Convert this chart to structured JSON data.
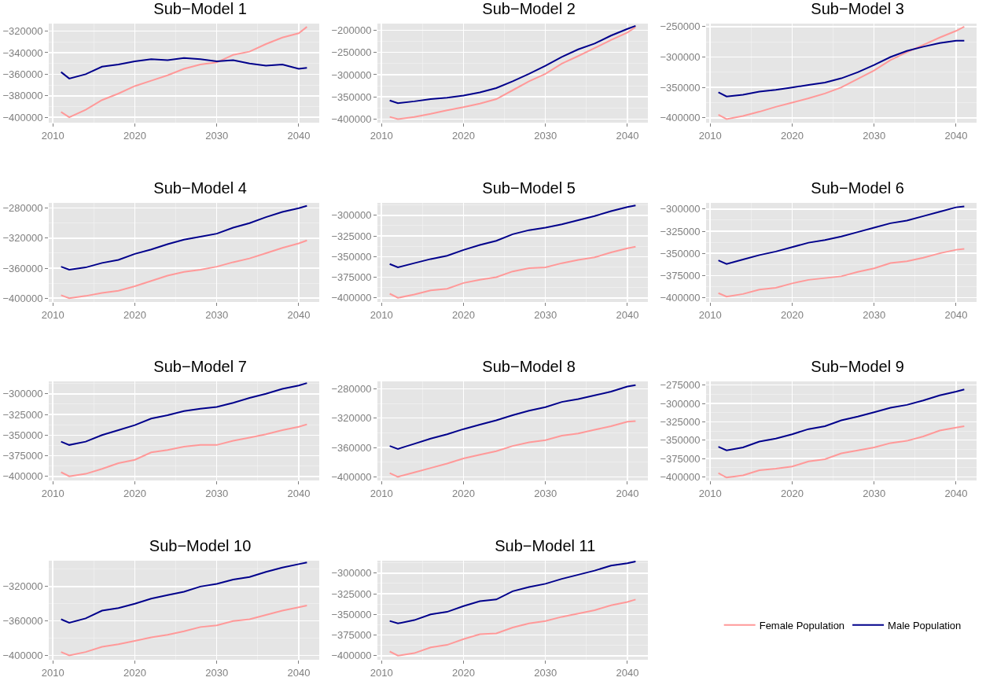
{
  "chart_data": [
    {
      "type": "line",
      "title": "Sub−Model 1",
      "x": [
        2011,
        2012,
        2014,
        2016,
        2018,
        2020,
        2022,
        2024,
        2026,
        2028,
        2030,
        2032,
        2034,
        2036,
        2038,
        2040,
        2041
      ],
      "xlim": [
        2009.5,
        2042.5
      ],
      "xticks": [
        2010,
        2020,
        2030,
        2040
      ],
      "ylim": [
        -405000,
        -313000
      ],
      "yticks": [
        -400000,
        -380000,
        -360000,
        -340000,
        -320000
      ],
      "grid": true,
      "series": [
        {
          "color": "#ff9999",
          "values": [
            -395000,
            -400000,
            -393000,
            -384000,
            -378000,
            -371000,
            -366000,
            -361000,
            -355000,
            -351000,
            -349000,
            -342000,
            -339000,
            -332000,
            -326000,
            -322000,
            -316000
          ]
        },
        {
          "color": "#00008b",
          "values": [
            -358000,
            -364000,
            -360000,
            -353000,
            -351000,
            -348000,
            -346000,
            -347000,
            -345000,
            -346000,
            -348000,
            -347000,
            -350000,
            -352000,
            -351000,
            -355000,
            -354000
          ]
        }
      ]
    },
    {
      "type": "line",
      "title": "Sub−Model 2",
      "x": [
        2011,
        2012,
        2014,
        2016,
        2018,
        2020,
        2022,
        2024,
        2026,
        2028,
        2030,
        2032,
        2034,
        2036,
        2038,
        2040,
        2041
      ],
      "xlim": [
        2009.5,
        2042.5
      ],
      "xticks": [
        2010,
        2020,
        2030,
        2040
      ],
      "ylim": [
        -408000,
        -185000
      ],
      "yticks": [
        -400000,
        -350000,
        -300000,
        -250000,
        -200000
      ],
      "grid": true,
      "series": [
        {
          "color": "#ff9999",
          "values": [
            -395000,
            -400000,
            -395000,
            -388000,
            -380000,
            -373000,
            -365000,
            -355000,
            -335000,
            -315000,
            -298000,
            -275000,
            -258000,
            -240000,
            -222000,
            -205000,
            -193000
          ]
        },
        {
          "color": "#00008b",
          "values": [
            -358000,
            -364000,
            -360000,
            -355000,
            -352000,
            -347000,
            -340000,
            -330000,
            -315000,
            -298000,
            -280000,
            -260000,
            -243000,
            -230000,
            -212000,
            -197000,
            -190000
          ]
        }
      ]
    },
    {
      "type": "line",
      "title": "Sub−Model 3",
      "x": [
        2011,
        2012,
        2014,
        2016,
        2018,
        2020,
        2022,
        2024,
        2026,
        2028,
        2030,
        2032,
        2034,
        2036,
        2038,
        2040,
        2041
      ],
      "xlim": [
        2009.5,
        2042.5
      ],
      "xticks": [
        2010,
        2020,
        2030,
        2040
      ],
      "ylim": [
        -408000,
        -245000
      ],
      "yticks": [
        -400000,
        -350000,
        -300000,
        -250000
      ],
      "grid": true,
      "series": [
        {
          "color": "#ff9999",
          "values": [
            -395000,
            -402000,
            -397000,
            -390000,
            -382000,
            -375000,
            -368000,
            -360000,
            -350000,
            -336000,
            -322000,
            -305000,
            -292000,
            -280000,
            -268000,
            -257000,
            -250000
          ]
        },
        {
          "color": "#00008b",
          "values": [
            -358000,
            -365000,
            -362000,
            -357000,
            -354000,
            -350000,
            -346000,
            -342000,
            -335000,
            -325000,
            -313000,
            -300000,
            -290000,
            -283000,
            -277000,
            -273000,
            -273000
          ]
        }
      ]
    },
    {
      "type": "line",
      "title": "Sub−Model 4",
      "x": [
        2011,
        2012,
        2014,
        2016,
        2018,
        2020,
        2022,
        2024,
        2026,
        2028,
        2030,
        2032,
        2034,
        2036,
        2038,
        2040,
        2041
      ],
      "xlim": [
        2009.5,
        2042.5
      ],
      "xticks": [
        2010,
        2020,
        2030,
        2040
      ],
      "ylim": [
        -405000,
        -273000
      ],
      "yticks": [
        -400000,
        -360000,
        -320000,
        -280000
      ],
      "grid": true,
      "series": [
        {
          "color": "#ff9999",
          "values": [
            -396000,
            -400000,
            -397000,
            -393000,
            -390000,
            -384000,
            -377000,
            -370000,
            -365000,
            -362000,
            -358000,
            -352000,
            -347000,
            -340000,
            -333000,
            -327000,
            -323000
          ]
        },
        {
          "color": "#00008b",
          "values": [
            -358000,
            -362000,
            -359000,
            -353000,
            -349000,
            -341000,
            -335000,
            -328000,
            -322000,
            -318000,
            -314000,
            -306000,
            -300000,
            -292000,
            -285000,
            -280000,
            -277000
          ]
        }
      ]
    },
    {
      "type": "line",
      "title": "Sub−Model 5",
      "x": [
        2011,
        2012,
        2014,
        2016,
        2018,
        2020,
        2022,
        2024,
        2026,
        2028,
        2030,
        2032,
        2034,
        2036,
        2038,
        2040,
        2041
      ],
      "xlim": [
        2009.5,
        2042.5
      ],
      "xticks": [
        2010,
        2020,
        2030,
        2040
      ],
      "ylim": [
        -405000,
        -285000
      ],
      "yticks": [
        -400000,
        -375000,
        -350000,
        -325000,
        -300000
      ],
      "grid": true,
      "series": [
        {
          "color": "#ff9999",
          "values": [
            -395000,
            -400000,
            -396000,
            -391000,
            -389000,
            -382000,
            -378000,
            -375000,
            -368000,
            -364000,
            -363000,
            -358000,
            -354000,
            -351000,
            -345000,
            -340000,
            -338000
          ]
        },
        {
          "color": "#00008b",
          "values": [
            -359000,
            -363000,
            -358000,
            -353000,
            -349000,
            -342000,
            -336000,
            -331000,
            -323000,
            -318000,
            -315000,
            -311000,
            -306000,
            -301000,
            -295000,
            -290000,
            -288000
          ]
        }
      ]
    },
    {
      "type": "line",
      "title": "Sub−Model 6",
      "x": [
        2011,
        2012,
        2014,
        2016,
        2018,
        2020,
        2022,
        2024,
        2026,
        2028,
        2030,
        2032,
        2034,
        2036,
        2038,
        2040,
        2041
      ],
      "xlim": [
        2009.5,
        2042.5
      ],
      "xticks": [
        2010,
        2020,
        2030,
        2040
      ],
      "ylim": [
        -405000,
        -293000
      ],
      "yticks": [
        -400000,
        -375000,
        -350000,
        -325000,
        -300000
      ],
      "grid": true,
      "series": [
        {
          "color": "#ff9999",
          "values": [
            -395000,
            -399000,
            -396000,
            -391000,
            -389000,
            -384000,
            -380000,
            -378000,
            -376000,
            -371000,
            -367000,
            -361000,
            -359000,
            -355000,
            -350000,
            -346000,
            -345000
          ]
        },
        {
          "color": "#00008b",
          "values": [
            -358000,
            -362000,
            -357000,
            -352000,
            -348000,
            -343000,
            -338000,
            -335000,
            -331000,
            -326000,
            -321000,
            -316000,
            -313000,
            -308000,
            -303000,
            -298000,
            -297000
          ]
        }
      ]
    },
    {
      "type": "line",
      "title": "Sub−Model 7",
      "x": [
        2011,
        2012,
        2014,
        2016,
        2018,
        2020,
        2022,
        2024,
        2026,
        2028,
        2030,
        2032,
        2034,
        2036,
        2038,
        2040,
        2041
      ],
      "xlim": [
        2009.5,
        2042.5
      ],
      "xticks": [
        2010,
        2020,
        2030,
        2040
      ],
      "ylim": [
        -405000,
        -285000
      ],
      "yticks": [
        -400000,
        -375000,
        -350000,
        -325000,
        -300000
      ],
      "grid": true,
      "series": [
        {
          "color": "#ff9999",
          "values": [
            -395000,
            -400000,
            -397000,
            -391000,
            -384000,
            -380000,
            -371000,
            -368000,
            -364000,
            -362000,
            -362000,
            -357000,
            -353000,
            -349000,
            -344000,
            -340000,
            -337000
          ]
        },
        {
          "color": "#00008b",
          "values": [
            -358000,
            -362000,
            -358000,
            -350000,
            -344000,
            -338000,
            -330000,
            -326000,
            -321000,
            -318000,
            -316000,
            -311000,
            -305000,
            -300000,
            -294000,
            -290000,
            -287000
          ]
        }
      ]
    },
    {
      "type": "line",
      "title": "Sub−Model 8",
      "x": [
        2011,
        2012,
        2014,
        2016,
        2018,
        2020,
        2022,
        2024,
        2026,
        2028,
        2030,
        2032,
        2034,
        2036,
        2038,
        2040,
        2041
      ],
      "xlim": [
        2009.5,
        2042.5
      ],
      "xticks": [
        2010,
        2020,
        2030,
        2040
      ],
      "ylim": [
        -405000,
        -270000
      ],
      "yticks": [
        -400000,
        -360000,
        -320000,
        -280000
      ],
      "grid": true,
      "series": [
        {
          "color": "#ff9999",
          "values": [
            -395000,
            -400000,
            -394000,
            -388000,
            -382000,
            -375000,
            -370000,
            -365000,
            -358000,
            -353000,
            -350000,
            -344000,
            -341000,
            -336000,
            -331000,
            -325000,
            -324000
          ]
        },
        {
          "color": "#00008b",
          "values": [
            -358000,
            -362000,
            -355000,
            -348000,
            -342000,
            -335000,
            -329000,
            -323000,
            -316000,
            -310000,
            -305000,
            -298000,
            -294000,
            -289000,
            -284000,
            -277000,
            -275000
          ]
        }
      ]
    },
    {
      "type": "line",
      "title": "Sub−Model 9",
      "x": [
        2011,
        2012,
        2014,
        2016,
        2018,
        2020,
        2022,
        2024,
        2026,
        2028,
        2030,
        2032,
        2034,
        2036,
        2038,
        2040,
        2041
      ],
      "xlim": [
        2009.5,
        2042.5
      ],
      "xticks": [
        2010,
        2020,
        2030,
        2040
      ],
      "ylim": [
        -405000,
        -270000
      ],
      "yticks": [
        -400000,
        -375000,
        -350000,
        -325000,
        -300000,
        -275000
      ],
      "grid": true,
      "series": [
        {
          "color": "#ff9999",
          "values": [
            -395000,
            -401000,
            -398000,
            -391000,
            -389000,
            -386000,
            -379000,
            -376000,
            -368000,
            -364000,
            -360000,
            -354000,
            -351000,
            -345000,
            -337000,
            -333000,
            -331000
          ]
        },
        {
          "color": "#00008b",
          "values": [
            -359000,
            -364000,
            -360000,
            -352000,
            -348000,
            -342000,
            -335000,
            -331000,
            -323000,
            -318000,
            -312000,
            -306000,
            -302000,
            -296000,
            -289000,
            -284000,
            -281000
          ]
        }
      ]
    },
    {
      "type": "line",
      "title": "Sub−Model 10",
      "x": [
        2011,
        2012,
        2014,
        2016,
        2018,
        2020,
        2022,
        2024,
        2026,
        2028,
        2030,
        2032,
        2034,
        2036,
        2038,
        2040,
        2041
      ],
      "xlim": [
        2009.5,
        2042.5
      ],
      "xticks": [
        2010,
        2020,
        2030,
        2040
      ],
      "ylim": [
        -405000,
        -290000
      ],
      "yticks": [
        -400000,
        -360000,
        -320000
      ],
      "grid": true,
      "series": [
        {
          "color": "#ff9999",
          "values": [
            -396000,
            -400000,
            -396000,
            -390000,
            -387000,
            -383000,
            -379000,
            -376000,
            -372000,
            -367000,
            -365000,
            -360000,
            -358000,
            -353000,
            -348000,
            -344000,
            -342000
          ]
        },
        {
          "color": "#00008b",
          "values": [
            -358000,
            -362000,
            -357000,
            -348000,
            -345000,
            -340000,
            -334000,
            -330000,
            -326000,
            -320000,
            -317000,
            -312000,
            -309000,
            -303000,
            -298000,
            -294000,
            -292000
          ]
        }
      ]
    },
    {
      "type": "line",
      "title": "Sub−Model 11",
      "x": [
        2011,
        2012,
        2014,
        2016,
        2018,
        2020,
        2022,
        2024,
        2026,
        2028,
        2030,
        2032,
        2034,
        2036,
        2038,
        2040,
        2041
      ],
      "xlim": [
        2009.5,
        2042.5
      ],
      "xticks": [
        2010,
        2020,
        2030,
        2040
      ],
      "ylim": [
        -405000,
        -285000
      ],
      "yticks": [
        -400000,
        -375000,
        -350000,
        -325000,
        -300000
      ],
      "grid": true,
      "legend": "right",
      "series": [
        {
          "name": "Female Population",
          "color": "#ff9999",
          "values": [
            -395000,
            -400000,
            -397000,
            -390000,
            -387000,
            -380000,
            -374000,
            -373000,
            -366000,
            -361000,
            -358000,
            -353000,
            -349000,
            -345000,
            -339000,
            -335000,
            -332000
          ]
        },
        {
          "name": "Male Population",
          "color": "#00008b",
          "values": [
            -358000,
            -361000,
            -357000,
            -350000,
            -347000,
            -340000,
            -334000,
            -332000,
            -322000,
            -317000,
            -313000,
            -307000,
            -302000,
            -297000,
            -291000,
            -288000,
            -286000
          ]
        }
      ]
    }
  ]
}
